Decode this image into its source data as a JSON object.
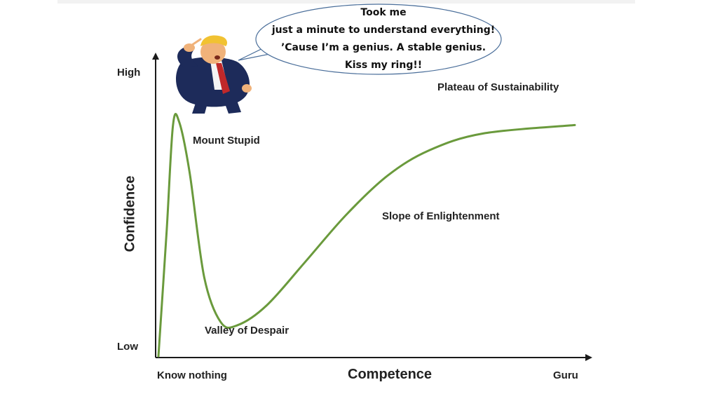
{
  "chart_data": {
    "type": "line",
    "xlabel": "Competence",
    "ylabel": "Confidence",
    "x_ticks": [
      "Know nothing",
      "Guru"
    ],
    "y_ticks": [
      "Low",
      "High"
    ],
    "xlim": [
      0,
      1
    ],
    "ylim": [
      0,
      1
    ],
    "grid": false,
    "series": [
      {
        "color": "#6a9a3c",
        "points": [
          [
            0.0,
            0.0
          ],
          [
            0.02,
            0.45
          ],
          [
            0.035,
            0.82
          ],
          [
            0.05,
            0.83
          ],
          [
            0.075,
            0.65
          ],
          [
            0.11,
            0.28
          ],
          [
            0.15,
            0.12
          ],
          [
            0.19,
            0.11
          ],
          [
            0.26,
            0.18
          ],
          [
            0.35,
            0.33
          ],
          [
            0.45,
            0.5
          ],
          [
            0.55,
            0.64
          ],
          [
            0.65,
            0.73
          ],
          [
            0.78,
            0.79
          ],
          [
            1.0,
            0.82
          ]
        ]
      }
    ],
    "annotations": [
      {
        "text": "Mount Stupid"
      },
      {
        "text": "Valley of Despair"
      },
      {
        "text": "Slope of Enlightenment"
      },
      {
        "text": "Plateau of Sustainability"
      }
    ]
  },
  "speech_bubble": {
    "lines": [
      "Took me",
      "just a minute to understand everything!",
      "’Cause I’m a genius. A stable genius.",
      "Kiss my ring!!"
    ]
  },
  "figure": {
    "name": "cartoon-man-pointing-at-head"
  },
  "colors": {
    "curve": "#6a9a3c",
    "axis": "#1a1a1a",
    "bubble_border": "#4a6e9a",
    "suit": "#1d2b5a",
    "tie": "#c0282a",
    "hair": "#f1c232"
  }
}
